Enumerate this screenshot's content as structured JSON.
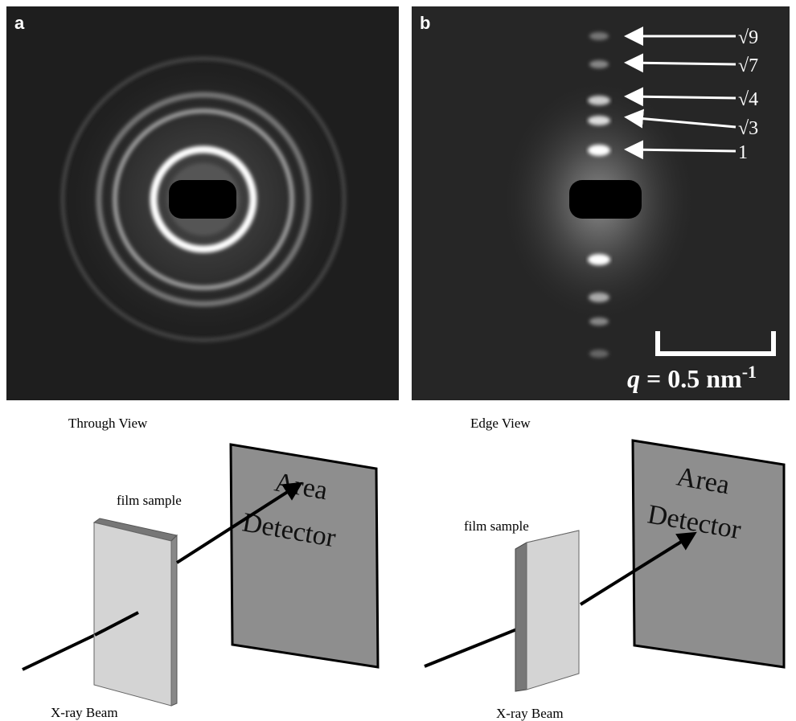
{
  "panels": [
    {
      "label": "a",
      "caption": "Through View",
      "sample": "film sample",
      "detector": [
        "Area",
        "Detector"
      ],
      "beam": "X-ray Beam"
    },
    {
      "label": "b",
      "caption": "Edge View",
      "sample": "film sample",
      "detector": [
        "Area",
        "Detector"
      ],
      "beam": "X-ray Beam",
      "peaks": [
        "√9",
        "√7",
        "√4",
        "√3",
        "1"
      ],
      "scale_bar": {
        "symbol": "q",
        "text": "= 0.5 nm",
        "exponent": "-1"
      }
    }
  ]
}
